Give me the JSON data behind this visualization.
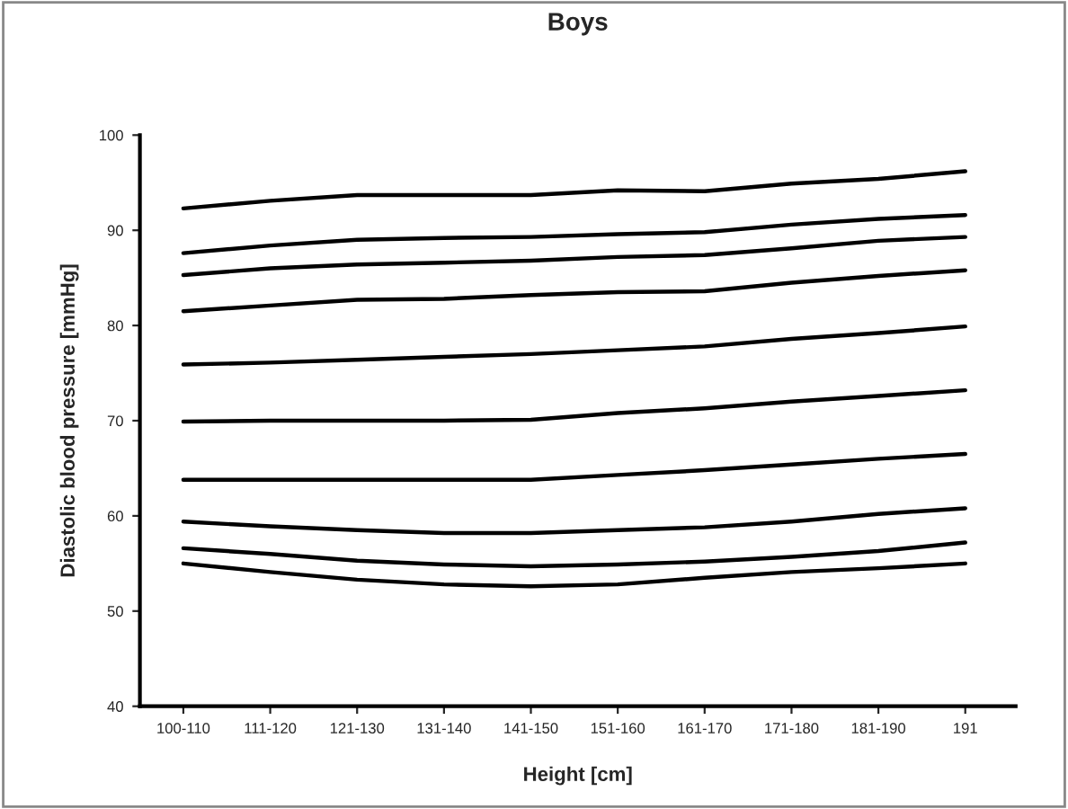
{
  "chart_data": {
    "type": "line",
    "title": "Boys",
    "xlabel": "Height [cm]",
    "ylabel": "Diastolic blood pressure [mmHg]",
    "categories": [
      "100-110",
      "111-120",
      "121-130",
      "131-140",
      "141-150",
      "151-160",
      "161-170",
      "171-180",
      "181-190",
      "191"
    ],
    "ylim": [
      40,
      100
    ],
    "yticks": [
      40,
      50,
      60,
      70,
      80,
      90,
      100
    ],
    "grid": false,
    "legend": false,
    "marker": "none",
    "line_style": "solid",
    "series": [
      {
        "color": "#000000",
        "values": [
          92.3,
          93.1,
          93.7,
          93.7,
          93.7,
          94.2,
          94.1,
          94.9,
          95.4,
          96.2
        ]
      },
      {
        "color": "#000000",
        "values": [
          87.6,
          88.4,
          89.0,
          89.2,
          89.3,
          89.6,
          89.8,
          90.6,
          91.2,
          91.6
        ]
      },
      {
        "color": "#000000",
        "values": [
          85.3,
          86.0,
          86.4,
          86.6,
          86.8,
          87.2,
          87.4,
          88.1,
          88.9,
          89.3
        ]
      },
      {
        "color": "#000000",
        "values": [
          81.5,
          82.1,
          82.7,
          82.8,
          83.2,
          83.5,
          83.6,
          84.5,
          85.2,
          85.8
        ]
      },
      {
        "color": "#000000",
        "values": [
          75.9,
          76.1,
          76.4,
          76.7,
          77.0,
          77.4,
          77.8,
          78.6,
          79.2,
          79.9
        ]
      },
      {
        "color": "#000000",
        "values": [
          69.9,
          70.0,
          70.0,
          70.0,
          70.1,
          70.8,
          71.3,
          72.0,
          72.6,
          73.2
        ]
      },
      {
        "color": "#000000",
        "values": [
          63.8,
          63.8,
          63.8,
          63.8,
          63.8,
          64.3,
          64.8,
          65.4,
          66.0,
          66.5
        ]
      },
      {
        "color": "#000000",
        "values": [
          59.4,
          58.9,
          58.5,
          58.2,
          58.2,
          58.5,
          58.8,
          59.4,
          60.2,
          60.8
        ]
      },
      {
        "color": "#000000",
        "values": [
          56.6,
          56.0,
          55.3,
          54.9,
          54.7,
          54.9,
          55.2,
          55.7,
          56.3,
          57.2
        ]
      },
      {
        "color": "#000000",
        "values": [
          55.0,
          54.1,
          53.3,
          52.8,
          52.6,
          52.8,
          53.5,
          54.1,
          54.5,
          55.0
        ]
      }
    ]
  }
}
